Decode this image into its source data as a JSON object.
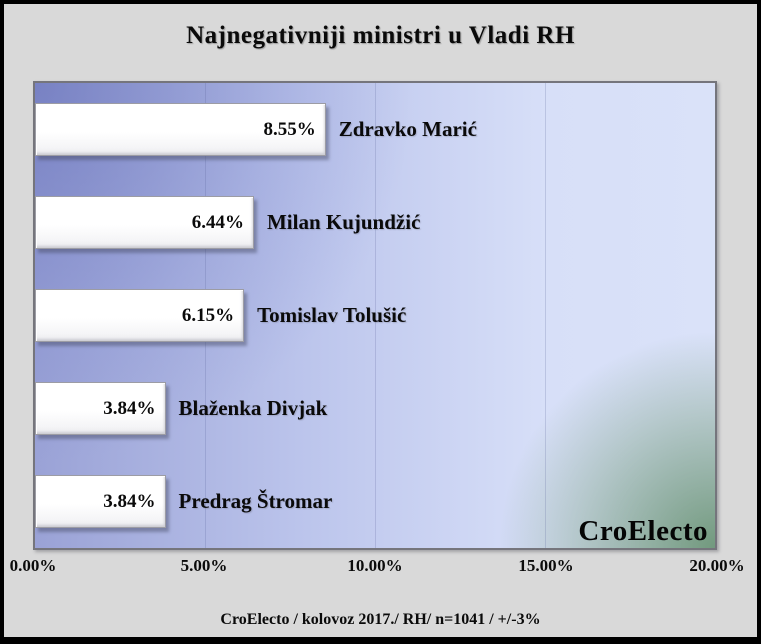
{
  "page": {
    "background_color": "#d9d9d9",
    "frame_color": "#000000"
  },
  "chart_data": {
    "type": "bar",
    "orientation": "horizontal",
    "title": "Najnegativniji ministri u Vladi RH",
    "categories": [
      "Zdravko Marić",
      "Milan Kujundžić",
      "Tomislav Tolušić",
      "Blaženka Divjak",
      "Predrag Štromar"
    ],
    "values": [
      8.55,
      6.44,
      6.15,
      3.84,
      3.84
    ],
    "value_labels": [
      "8.55%",
      "6.44%",
      "6.15%",
      "3.84%",
      "3.84%"
    ],
    "xlim": [
      0,
      20
    ],
    "x_ticks": [
      {
        "value": 0,
        "label": "0.00%"
      },
      {
        "value": 5,
        "label": "5.00%"
      },
      {
        "value": 10,
        "label": "10.00%"
      },
      {
        "value": 15,
        "label": "15.00%"
      },
      {
        "value": 20,
        "label": "20.00%"
      }
    ],
    "gridline_values": [
      5,
      10,
      15
    ],
    "grid": "vertical-faint",
    "legend_position": "none",
    "bar_color": "#ffffff",
    "plot_gradient_colors": [
      "#8a92c9",
      "#d8e0f8",
      "#5f8763"
    ],
    "watermark": "CroElecto",
    "footer": "CroElecto / kolovoz 2017./ RH/ n=1041 / +/-3%"
  }
}
